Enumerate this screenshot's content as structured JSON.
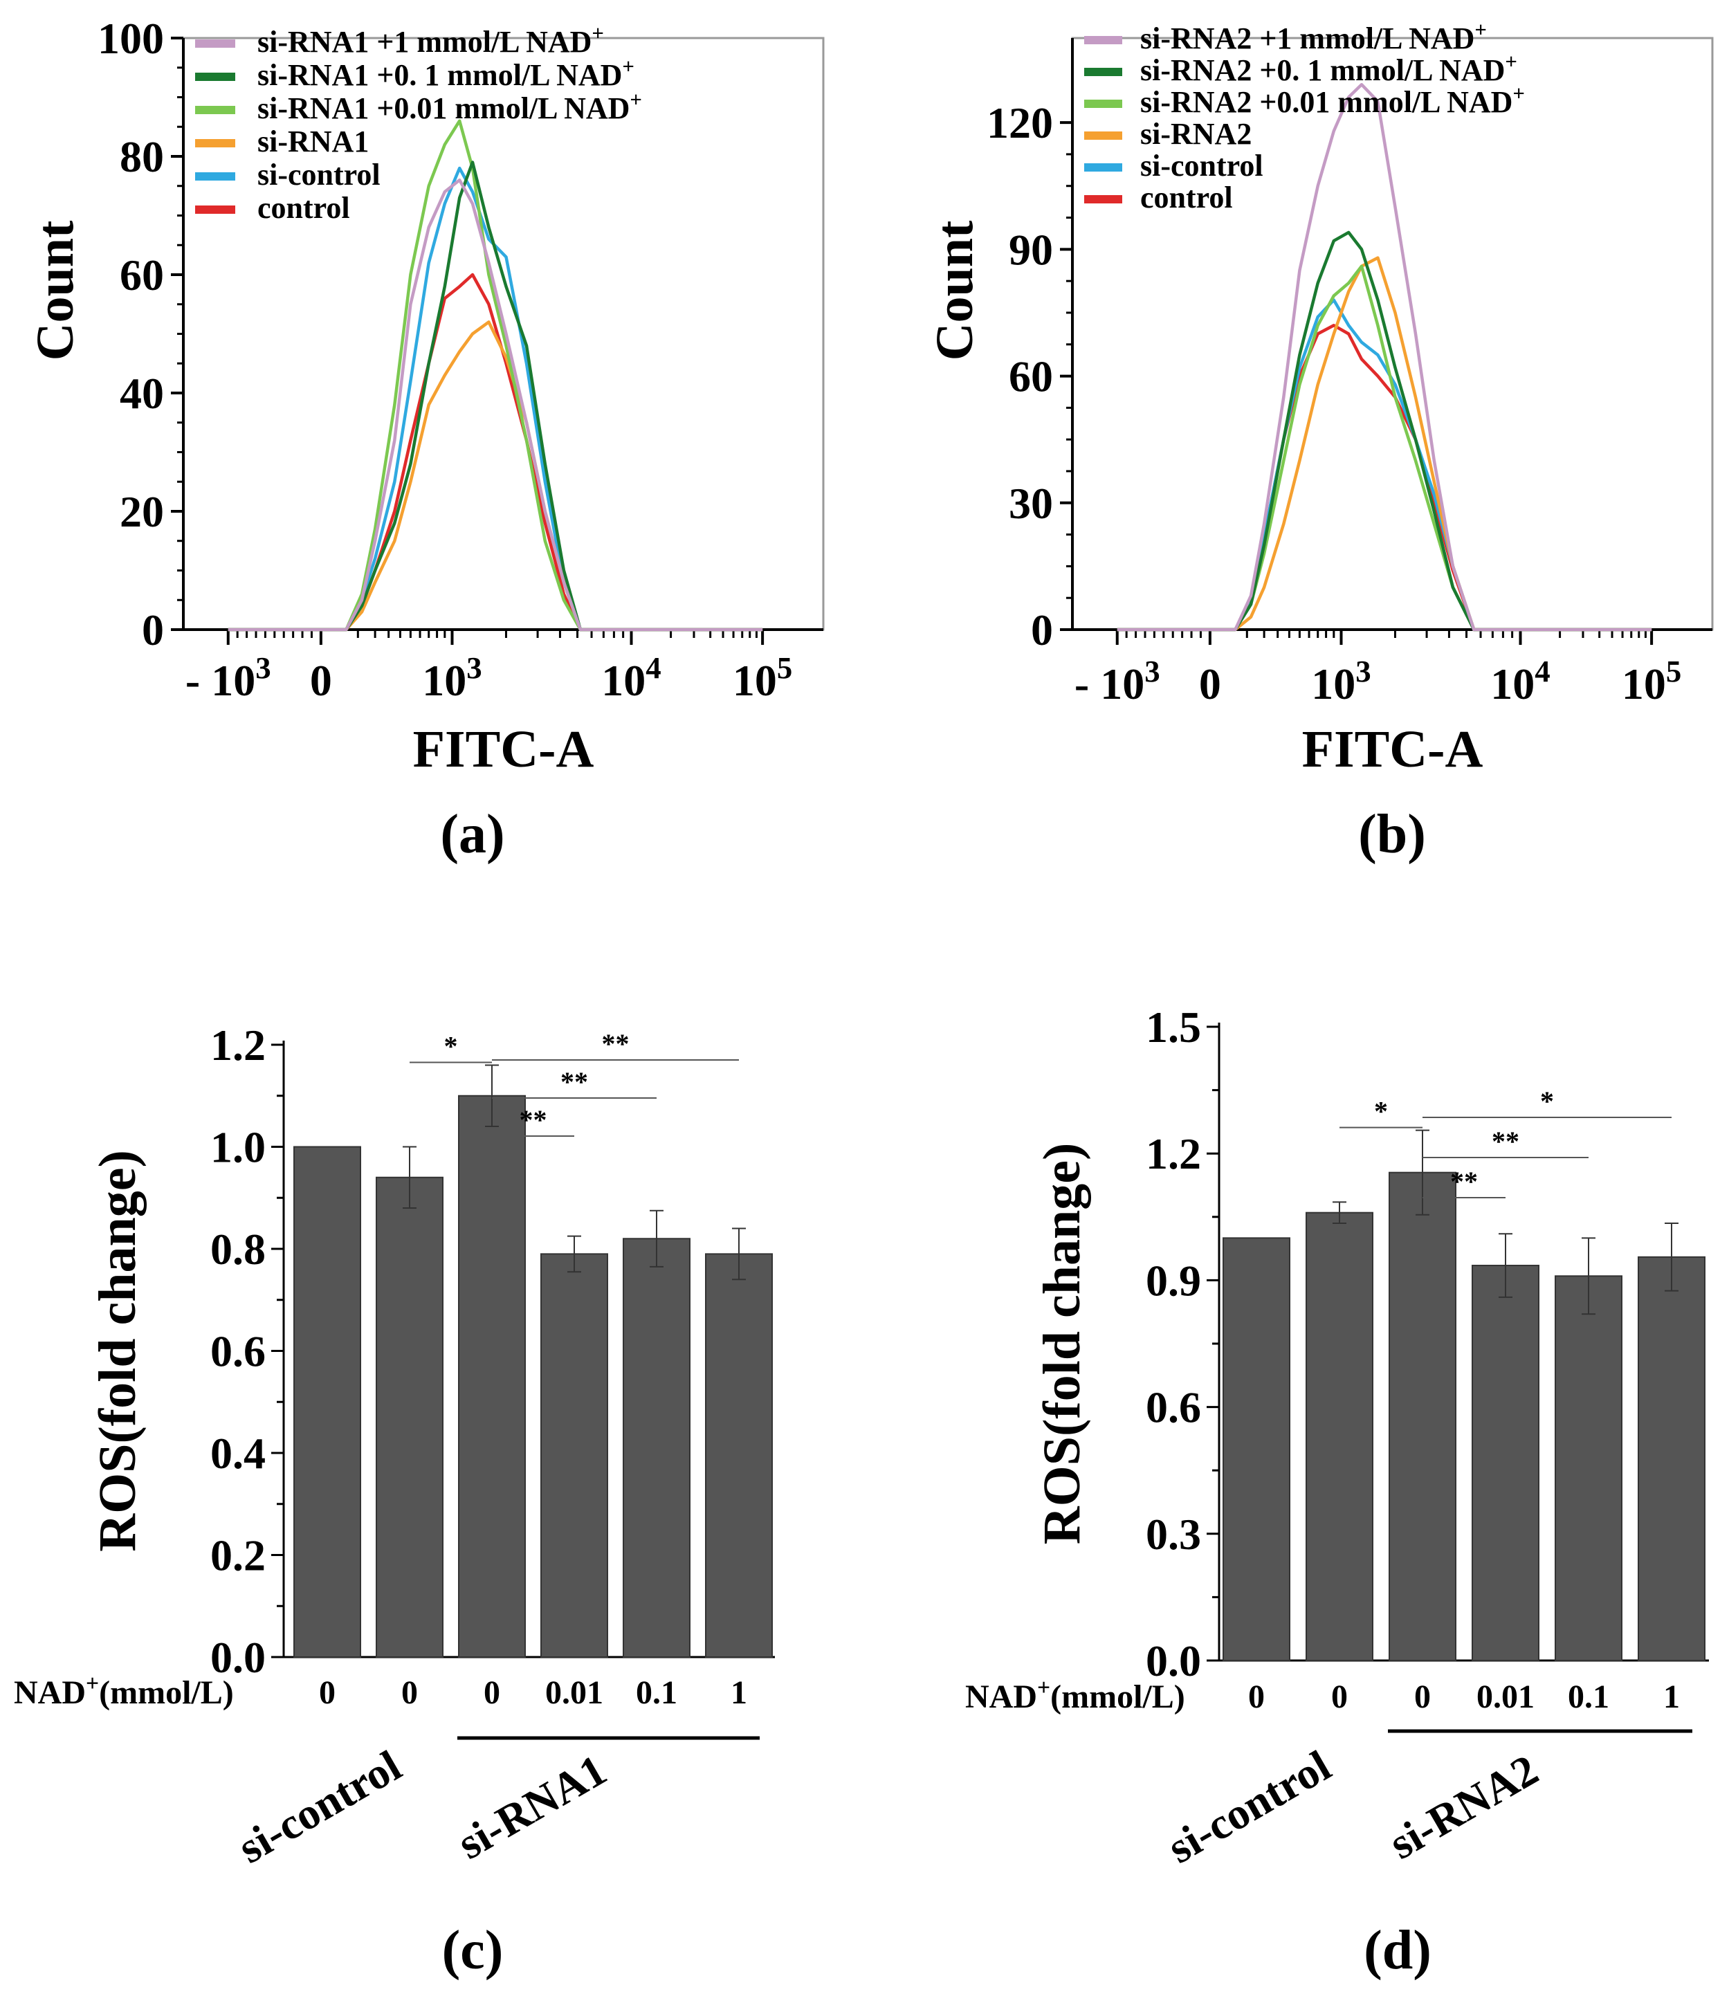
{
  "chart_data": [
    {
      "panel": "(a)",
      "type": "line",
      "title": "",
      "xlabel": "FITC-A",
      "ylabel": "Count",
      "xscale": "biexponential",
      "ylim": [
        0,
        100
      ],
      "yticks": [
        "0",
        "20",
        "40",
        "60",
        "80",
        "100"
      ],
      "xticks": [
        {
          "label": "- 10",
          "sup": "3",
          "value": -1000
        },
        {
          "label": "0",
          "sup": "",
          "value": 0
        },
        {
          "label": "10",
          "sup": "3",
          "value": 1000
        },
        {
          "label": "10",
          "sup": "4",
          "value": 10000
        },
        {
          "label": "10",
          "sup": "5",
          "value": 100000
        }
      ],
      "legend_position": "top-left",
      "series": [
        {
          "name": "si-RNA1 +1 mmol/L  NAD",
          "sup": "+",
          "color": "#c49bc4",
          "points": [
            [
              50,
              0
            ],
            [
              120,
              5
            ],
            [
              200,
              15
            ],
            [
              350,
              32
            ],
            [
              500,
              55
            ],
            [
              700,
              68
            ],
            [
              900,
              74
            ],
            [
              1100,
              76
            ],
            [
              1300,
              72
            ],
            [
              1600,
              62
            ],
            [
              2000,
              50
            ],
            [
              2600,
              35
            ],
            [
              3300,
              20
            ],
            [
              4200,
              8
            ],
            [
              5200,
              0
            ]
          ]
        },
        {
          "name": "si-RNA1 +0. 1 mmol/L NAD",
          "sup": "+",
          "color": "#1a7a30",
          "points": [
            [
              50,
              0
            ],
            [
              120,
              4
            ],
            [
              200,
              10
            ],
            [
              350,
              18
            ],
            [
              500,
              28
            ],
            [
              700,
              45
            ],
            [
              900,
              58
            ],
            [
              1100,
              73
            ],
            [
              1300,
              79
            ],
            [
              1600,
              68
            ],
            [
              2000,
              58
            ],
            [
              2600,
              48
            ],
            [
              3300,
              28
            ],
            [
              4200,
              10
            ],
            [
              5200,
              0
            ]
          ]
        },
        {
          "name": "si-RNA1 +0.01 mmol/L  NAD",
          "sup": "+",
          "color": "#7cc850",
          "points": [
            [
              50,
              0
            ],
            [
              120,
              6
            ],
            [
              200,
              17
            ],
            [
              350,
              38
            ],
            [
              500,
              60
            ],
            [
              700,
              75
            ],
            [
              900,
              82
            ],
            [
              1100,
              86
            ],
            [
              1300,
              78
            ],
            [
              1600,
              60
            ],
            [
              2000,
              48
            ],
            [
              2600,
              32
            ],
            [
              3300,
              15
            ],
            [
              4200,
              5
            ],
            [
              5200,
              0
            ]
          ]
        },
        {
          "name": "si-RNA1",
          "sup": "",
          "color": "#f5a030",
          "points": [
            [
              50,
              0
            ],
            [
              120,
              3
            ],
            [
              200,
              8
            ],
            [
              350,
              15
            ],
            [
              500,
              25
            ],
            [
              700,
              38
            ],
            [
              900,
              43
            ],
            [
              1100,
              47
            ],
            [
              1300,
              50
            ],
            [
              1600,
              52
            ],
            [
              2000,
              46
            ],
            [
              2600,
              35
            ],
            [
              3300,
              20
            ],
            [
              4200,
              8
            ],
            [
              5200,
              0
            ]
          ]
        },
        {
          "name": "si-control",
          "sup": "",
          "color": "#2fa9e0",
          "points": [
            [
              50,
              0
            ],
            [
              120,
              5
            ],
            [
              200,
              12
            ],
            [
              350,
              25
            ],
            [
              500,
              42
            ],
            [
              700,
              62
            ],
            [
              900,
              72
            ],
            [
              1100,
              78
            ],
            [
              1300,
              74
            ],
            [
              1600,
              66
            ],
            [
              2000,
              63
            ],
            [
              2600,
              45
            ],
            [
              3300,
              25
            ],
            [
              4200,
              8
            ],
            [
              5200,
              0
            ]
          ]
        },
        {
          "name": "control",
          "sup": "",
          "color": "#e02a2a",
          "points": [
            [
              50,
              0
            ],
            [
              120,
              4
            ],
            [
              200,
              10
            ],
            [
              350,
              20
            ],
            [
              500,
              32
            ],
            [
              700,
              45
            ],
            [
              900,
              56
            ],
            [
              1100,
              58
            ],
            [
              1300,
              60
            ],
            [
              1600,
              55
            ],
            [
              2000,
              45
            ],
            [
              2600,
              32
            ],
            [
              3300,
              18
            ],
            [
              4200,
              6
            ],
            [
              5200,
              0
            ]
          ]
        }
      ]
    },
    {
      "panel": "(b)",
      "type": "line",
      "title": "",
      "xlabel": "FITC-A",
      "ylabel": "Count",
      "xscale": "biexponential",
      "ylim": [
        0,
        140
      ],
      "yticks": [
        "0",
        "30",
        "60",
        "90",
        "120"
      ],
      "xticks": [
        {
          "label": "- 10",
          "sup": "3",
          "value": -1000
        },
        {
          "label": "0",
          "sup": "",
          "value": 0
        },
        {
          "label": "10",
          "sup": "3",
          "value": 1000
        },
        {
          "label": "10",
          "sup": "4",
          "value": 10000
        },
        {
          "label": "10",
          "sup": "5",
          "value": 100000
        }
      ],
      "legend_position": "top-left",
      "series": [
        {
          "name": "si-RNA2 +1 mmol/L  NAD",
          "sup": "+",
          "color": "#c49bc4",
          "points": [
            [
              50,
              0
            ],
            [
              120,
              8
            ],
            [
              200,
              25
            ],
            [
              350,
              55
            ],
            [
              500,
              85
            ],
            [
              700,
              105
            ],
            [
              900,
              118
            ],
            [
              1100,
              126
            ],
            [
              1300,
              129
            ],
            [
              1600,
              125
            ],
            [
              2000,
              100
            ],
            [
              2600,
              70
            ],
            [
              3300,
              40
            ],
            [
              4200,
              15
            ],
            [
              5500,
              0
            ]
          ]
        },
        {
          "name": "si-RNA2 +0. 1 mmol/L NAD",
          "sup": "+",
          "color": "#1a7a30",
          "points": [
            [
              50,
              0
            ],
            [
              120,
              6
            ],
            [
              200,
              20
            ],
            [
              350,
              45
            ],
            [
              500,
              65
            ],
            [
              700,
              82
            ],
            [
              900,
              92
            ],
            [
              1100,
              94
            ],
            [
              1300,
              90
            ],
            [
              1600,
              78
            ],
            [
              2000,
              62
            ],
            [
              2600,
              45
            ],
            [
              3300,
              28
            ],
            [
              4200,
              10
            ],
            [
              5500,
              0
            ]
          ]
        },
        {
          "name": "si-RNA2 +0.01 mmol/L  NAD",
          "sup": "+",
          "color": "#7cc850",
          "points": [
            [
              50,
              0
            ],
            [
              120,
              6
            ],
            [
              200,
              18
            ],
            [
              350,
              40
            ],
            [
              500,
              58
            ],
            [
              700,
              72
            ],
            [
              900,
              79
            ],
            [
              1100,
              82
            ],
            [
              1300,
              86
            ],
            [
              1600,
              72
            ],
            [
              2000,
              55
            ],
            [
              2600,
              40
            ],
            [
              3300,
              25
            ],
            [
              4200,
              10
            ],
            [
              5500,
              0
            ]
          ]
        },
        {
          "name": "si-RNA2",
          "sup": "",
          "color": "#f5a030",
          "points": [
            [
              50,
              0
            ],
            [
              120,
              3
            ],
            [
              200,
              10
            ],
            [
              350,
              25
            ],
            [
              500,
              40
            ],
            [
              700,
              58
            ],
            [
              900,
              70
            ],
            [
              1100,
              80
            ],
            [
              1300,
              86
            ],
            [
              1600,
              88
            ],
            [
              2000,
              75
            ],
            [
              2600,
              55
            ],
            [
              3300,
              35
            ],
            [
              4200,
              15
            ],
            [
              5500,
              0
            ]
          ]
        },
        {
          "name": "si-control",
          "sup": "",
          "color": "#2fa9e0",
          "points": [
            [
              50,
              0
            ],
            [
              120,
              7
            ],
            [
              200,
              22
            ],
            [
              350,
              45
            ],
            [
              500,
              62
            ],
            [
              700,
              74
            ],
            [
              900,
              78
            ],
            [
              1100,
              72
            ],
            [
              1300,
              68
            ],
            [
              1600,
              65
            ],
            [
              2000,
              58
            ],
            [
              2600,
              45
            ],
            [
              3300,
              32
            ],
            [
              4200,
              15
            ],
            [
              5500,
              0
            ]
          ]
        },
        {
          "name": "control",
          "sup": "",
          "color": "#e02a2a",
          "points": [
            [
              50,
              0
            ],
            [
              120,
              7
            ],
            [
              200,
              22
            ],
            [
              350,
              45
            ],
            [
              500,
              60
            ],
            [
              700,
              70
            ],
            [
              900,
              72
            ],
            [
              1100,
              70
            ],
            [
              1300,
              64
            ],
            [
              1600,
              60
            ],
            [
              2000,
              55
            ],
            [
              2600,
              45
            ],
            [
              3300,
              30
            ],
            [
              4200,
              14
            ],
            [
              5500,
              0
            ]
          ]
        }
      ]
    },
    {
      "panel": "(c)",
      "type": "bar",
      "title": "",
      "xlabel": "",
      "ylabel": "ROS(fold change)",
      "ylim": [
        0,
        1.2
      ],
      "yticks": [
        "0.0",
        "0.2",
        "0.4",
        "0.6",
        "0.8",
        "1.0",
        "1.2"
      ],
      "bar_color": "#555555",
      "category_prefix": "NAD",
      "category_prefix_sup": "+",
      "category_prefix_suffix": "(mmol/L)",
      "categories": [
        "0",
        "0",
        "0",
        "0.01",
        "0.1",
        "1"
      ],
      "values": [
        1.0,
        0.94,
        1.1,
        0.79,
        0.82,
        0.79
      ],
      "errors": [
        0,
        0.06,
        0.06,
        0.035,
        0.055,
        0.05
      ],
      "groups": [
        {
          "label": "si-control",
          "from": 0,
          "to": 1,
          "underline": false
        },
        {
          "label": "si-RNA1",
          "from": 2,
          "to": 5,
          "underline": true
        }
      ],
      "significance": [
        {
          "from": 1,
          "to": 2,
          "label": "*"
        },
        {
          "from": 2,
          "to": 3,
          "label": "**"
        },
        {
          "from": 2,
          "to": 4,
          "label": "**"
        },
        {
          "from": 2,
          "to": 5,
          "label": "**"
        }
      ]
    },
    {
      "panel": "(d)",
      "type": "bar",
      "title": "",
      "xlabel": "",
      "ylabel": "ROS(fold change)",
      "ylim": [
        0,
        1.5
      ],
      "yticks": [
        "0.0",
        "0.3",
        "0.6",
        "0.9",
        "1.2",
        "1.5"
      ],
      "bar_color": "#555555",
      "category_prefix": "NAD",
      "category_prefix_sup": "+",
      "category_prefix_suffix": "(mmol/L)",
      "categories": [
        "0",
        "0",
        "0",
        "0.01",
        "0.1",
        "1"
      ],
      "values": [
        1.0,
        1.06,
        1.155,
        0.935,
        0.91,
        0.955
      ],
      "errors": [
        0,
        0.025,
        0.1,
        0.075,
        0.09,
        0.08
      ],
      "groups": [
        {
          "label": "si-control",
          "from": 0,
          "to": 1,
          "underline": false
        },
        {
          "label": "si-RNA2",
          "from": 2,
          "to": 5,
          "underline": true
        }
      ],
      "significance": [
        {
          "from": 1,
          "to": 2,
          "label": "*"
        },
        {
          "from": 2,
          "to": 3,
          "label": "**"
        },
        {
          "from": 2,
          "to": 4,
          "label": "**"
        },
        {
          "from": 2,
          "to": 5,
          "label": "*"
        }
      ]
    }
  ]
}
